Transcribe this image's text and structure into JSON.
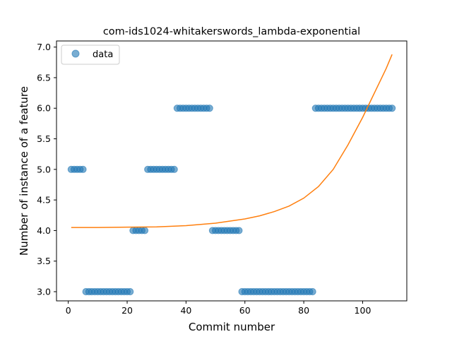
{
  "chart_data": {
    "type": "scatter",
    "title": "com-ids1024-whitakerswords_lambda-exponential",
    "xlabel": "Commit number",
    "ylabel": "Number of instance of a feature",
    "xlim": [
      -4,
      115
    ],
    "ylim": [
      2.85,
      7.1
    ],
    "xticks": [
      0,
      20,
      40,
      60,
      80,
      100
    ],
    "yticks": [
      3.0,
      3.5,
      4.0,
      4.5,
      5.0,
      5.5,
      6.0,
      6.5,
      7.0
    ],
    "ytick_labels": [
      "3.0",
      "3.5",
      "4.0",
      "4.5",
      "5.0",
      "5.5",
      "6.0",
      "6.5",
      "7.0"
    ],
    "legend_position": "top-left",
    "grid": false,
    "colors": {
      "data": "#1f77b4",
      "fit": "#ff7f0e"
    },
    "series": [
      {
        "name": "data",
        "type": "scatter",
        "points": [
          [
            1,
            5
          ],
          [
            2,
            5
          ],
          [
            3,
            5
          ],
          [
            4,
            5
          ],
          [
            5,
            5
          ],
          [
            6,
            3
          ],
          [
            7,
            3
          ],
          [
            8,
            3
          ],
          [
            9,
            3
          ],
          [
            10,
            3
          ],
          [
            11,
            3
          ],
          [
            12,
            3
          ],
          [
            13,
            3
          ],
          [
            14,
            3
          ],
          [
            15,
            3
          ],
          [
            16,
            3
          ],
          [
            17,
            3
          ],
          [
            18,
            3
          ],
          [
            19,
            3
          ],
          [
            20,
            3
          ],
          [
            21,
            3
          ],
          [
            22,
            4
          ],
          [
            23,
            4
          ],
          [
            24,
            4
          ],
          [
            25,
            4
          ],
          [
            26,
            4
          ],
          [
            27,
            5
          ],
          [
            28,
            5
          ],
          [
            29,
            5
          ],
          [
            30,
            5
          ],
          [
            31,
            5
          ],
          [
            32,
            5
          ],
          [
            33,
            5
          ],
          [
            34,
            5
          ],
          [
            35,
            5
          ],
          [
            36,
            5
          ],
          [
            37,
            6
          ],
          [
            38,
            6
          ],
          [
            39,
            6
          ],
          [
            40,
            6
          ],
          [
            41,
            6
          ],
          [
            42,
            6
          ],
          [
            43,
            6
          ],
          [
            44,
            6
          ],
          [
            45,
            6
          ],
          [
            46,
            6
          ],
          [
            47,
            6
          ],
          [
            48,
            6
          ],
          [
            49,
            4
          ],
          [
            50,
            4
          ],
          [
            51,
            4
          ],
          [
            52,
            4
          ],
          [
            53,
            4
          ],
          [
            54,
            4
          ],
          [
            55,
            4
          ],
          [
            56,
            4
          ],
          [
            57,
            4
          ],
          [
            58,
            4
          ],
          [
            59,
            3
          ],
          [
            60,
            3
          ],
          [
            61,
            3
          ],
          [
            62,
            3
          ],
          [
            63,
            3
          ],
          [
            64,
            3
          ],
          [
            65,
            3
          ],
          [
            66,
            3
          ],
          [
            67,
            3
          ],
          [
            68,
            3
          ],
          [
            69,
            3
          ],
          [
            70,
            3
          ],
          [
            71,
            3
          ],
          [
            72,
            3
          ],
          [
            73,
            3
          ],
          [
            74,
            3
          ],
          [
            75,
            3
          ],
          [
            76,
            3
          ],
          [
            77,
            3
          ],
          [
            78,
            3
          ],
          [
            79,
            3
          ],
          [
            80,
            3
          ],
          [
            81,
            3
          ],
          [
            82,
            3
          ],
          [
            83,
            3
          ],
          [
            84,
            6
          ],
          [
            85,
            6
          ],
          [
            86,
            6
          ],
          [
            87,
            6
          ],
          [
            88,
            6
          ],
          [
            89,
            6
          ],
          [
            90,
            6
          ],
          [
            91,
            6
          ],
          [
            92,
            6
          ],
          [
            93,
            6
          ],
          [
            94,
            6
          ],
          [
            95,
            6
          ],
          [
            96,
            6
          ],
          [
            97,
            6
          ],
          [
            98,
            6
          ],
          [
            99,
            6
          ],
          [
            100,
            6
          ],
          [
            101,
            6
          ],
          [
            102,
            6
          ],
          [
            103,
            6
          ],
          [
            104,
            6
          ],
          [
            105,
            6
          ],
          [
            106,
            6
          ],
          [
            107,
            6
          ],
          [
            108,
            6
          ],
          [
            109,
            6
          ],
          [
            110,
            6
          ]
        ]
      },
      {
        "type": "line",
        "points": [
          [
            1,
            4.05
          ],
          [
            10,
            4.05
          ],
          [
            20,
            4.055
          ],
          [
            30,
            4.06
          ],
          [
            40,
            4.08
          ],
          [
            50,
            4.12
          ],
          [
            60,
            4.19
          ],
          [
            65,
            4.24
          ],
          [
            70,
            4.31
          ],
          [
            75,
            4.4
          ],
          [
            80,
            4.53
          ],
          [
            85,
            4.72
          ],
          [
            90,
            5.0
          ],
          [
            95,
            5.4
          ],
          [
            100,
            5.85
          ],
          [
            103,
            6.15
          ],
          [
            106,
            6.45
          ],
          [
            108,
            6.65
          ],
          [
            110,
            6.88
          ]
        ]
      }
    ]
  }
}
